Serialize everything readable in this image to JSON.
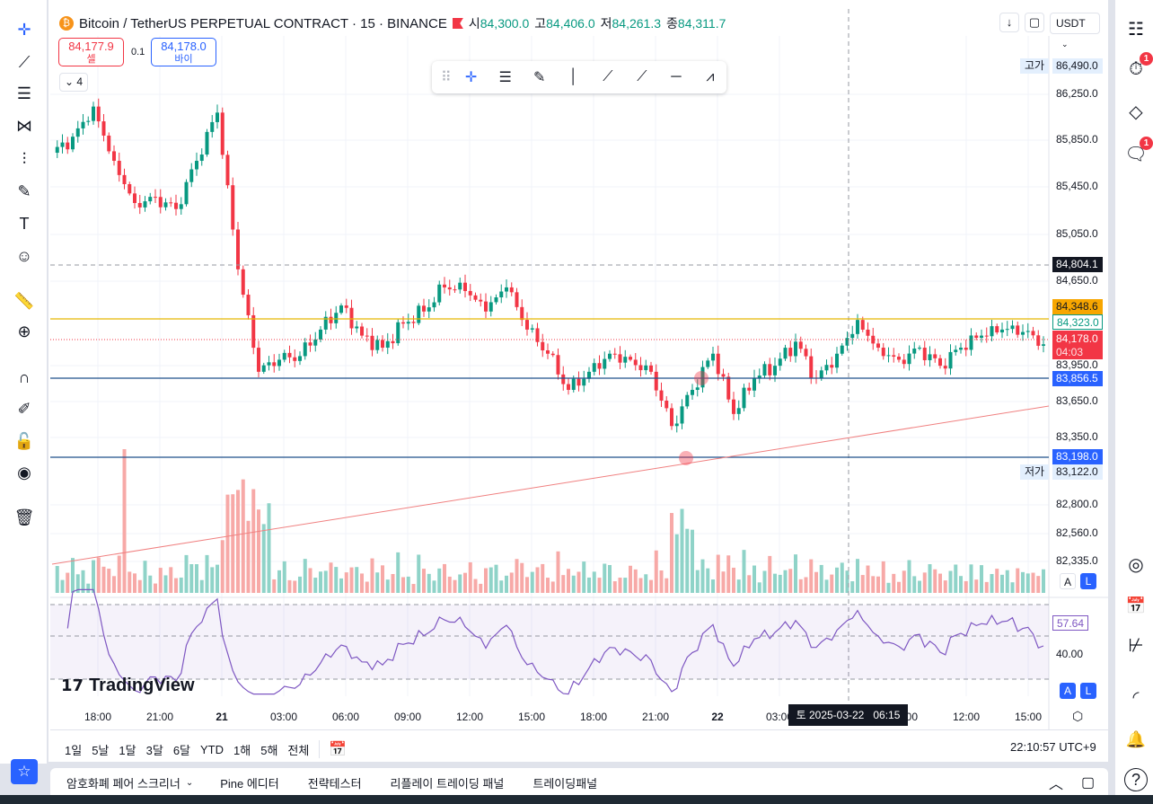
{
  "header": {
    "symbol": "Bitcoin / TetherUS PERPETUAL CONTRACT · 15 · BINANCE",
    "ohlc": [
      {
        "label": "시",
        "value": "84,300.0"
      },
      {
        "label": "고",
        "value": "84,406.0"
      },
      {
        "label": "저",
        "value": "84,261.3"
      },
      {
        "label": "종",
        "value": "84,311.7"
      }
    ],
    "sell_price": "84,177.9",
    "sell_label": "셀",
    "spread": "0.1",
    "buy_price": "84,178.0",
    "buy_label": "바이",
    "indicator_count": "4",
    "currency": "USDT"
  },
  "price_axis": {
    "ticks": [
      "86,250.0",
      "85,850.0",
      "85,450.0",
      "85,050.0",
      "84,650.0",
      "83,950.0",
      "83,650.0",
      "83,350.0",
      "82,800.0",
      "82,560.0",
      "82,335.0"
    ],
    "high_label": "고가",
    "high_value": "86,490.0",
    "low_label": "저가",
    "low_value": "83,122.0",
    "crosshair_price": "84,804.1",
    "orange_line": "84,348.6",
    "green_line": "84,323.0",
    "current_price": "84,178.0",
    "countdown": "04:03",
    "blue_line_1": "83,856.5",
    "blue_line_2": "83,198.0",
    "auto_label": "A",
    "log_label": "L",
    "rsi_value": "57.64",
    "rsi_tick": "40.00"
  },
  "time_axis": {
    "ticks": [
      "18:00",
      "21:00",
      "21",
      "03:00",
      "06:00",
      "09:00",
      "12:00",
      "15:00",
      "18:00",
      "21:00",
      "22",
      "03:00",
      "09:00",
      "12:00",
      "15:00"
    ],
    "crosshair_time": "토 2025-03-22   06:15"
  },
  "ranges": [
    "1일",
    "5날",
    "1달",
    "3달",
    "6달",
    "YTD",
    "1해",
    "5해",
    "전체"
  ],
  "clock": "22:10:57 UTC+9",
  "bottom_panel": [
    "암호화폐 페어 스크리너",
    "Pine 에디터",
    "전략테스터",
    "리플레이 트레이딩 패널",
    "트레이딩패널"
  ],
  "logo": "TradingView",
  "alerts_badge": "1",
  "chat_badge": "1",
  "colors": {
    "up": "#089981",
    "down": "#f23645",
    "vol_up": "#8fd3c8",
    "vol_down": "#f7a9a7",
    "orange": "#f7a600",
    "blue": "#2962ff",
    "rsi": "#7e57c2"
  },
  "chart_data": {
    "type": "candlestick",
    "interval": "15m",
    "hourly_closes": [
      85767,
      85900,
      86150,
      85700,
      85350,
      85400,
      85300,
      85700,
      86100,
      84800,
      83950,
      84050,
      84080,
      84300,
      84500,
      84250,
      84150,
      84350,
      84450,
      84650,
      84620,
      84450,
      84650,
      84300,
      84100,
      83800,
      83950,
      84100,
      84050,
      83950,
      83500,
      83800,
      84100,
      83600,
      83900,
      84000,
      84200,
      83900,
      84100,
      84380,
      84150,
      84050,
      84150,
      84000,
      84150,
      84250,
      84300,
      84280,
      84178
    ],
    "ylim": [
      82200,
      86620
    ],
    "rsi_range": [
      30,
      70
    ]
  }
}
